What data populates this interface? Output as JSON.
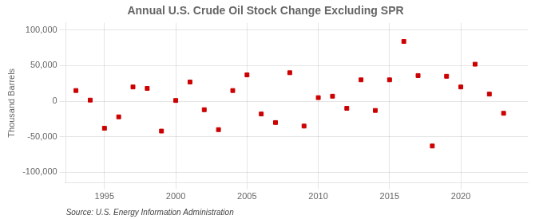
{
  "chart_data": {
    "type": "scatter",
    "title": "Annual U.S. Crude Oil Stock Change Excluding SPR",
    "ylabel": "Thousand Barrels",
    "annotations": [
      "Source: U.S. Energy Information Administration"
    ],
    "x": [
      1993,
      1994,
      1995,
      1996,
      1997,
      1998,
      1999,
      2000,
      2001,
      2002,
      2003,
      2004,
      2005,
      2006,
      2007,
      2008,
      2009,
      2010,
      2011,
      2012,
      2013,
      2014,
      2015,
      2016,
      2017,
      2018,
      2019,
      2020,
      2021,
      2022,
      2023
    ],
    "values": [
      15000,
      1500,
      -38000,
      -22000,
      20000,
      18000,
      -42000,
      1000,
      27000,
      -12000,
      -40000,
      15000,
      37000,
      -18000,
      -30000,
      40000,
      -35000,
      5000,
      7000,
      -10000,
      30000,
      -13000,
      30000,
      84000,
      36000,
      -63000,
      35000,
      20000,
      52000,
      10000,
      -17000
    ],
    "color": "#cc0000",
    "marker": "square",
    "xlim": [
      1992.3,
      2024.7
    ],
    "xticks": [
      1995,
      2000,
      2005,
      2010,
      2015,
      2020
    ],
    "ylim": [
      -115000,
      110000
    ],
    "yticks": [
      {
        "value": -100000,
        "label": "-100,000"
      },
      {
        "value": -50000,
        "label": "-50,000"
      },
      0,
      {
        "value": 50000,
        "label": "50,000"
      },
      {
        "value": 100000,
        "label": "100,000"
      }
    ],
    "grid": true
  }
}
